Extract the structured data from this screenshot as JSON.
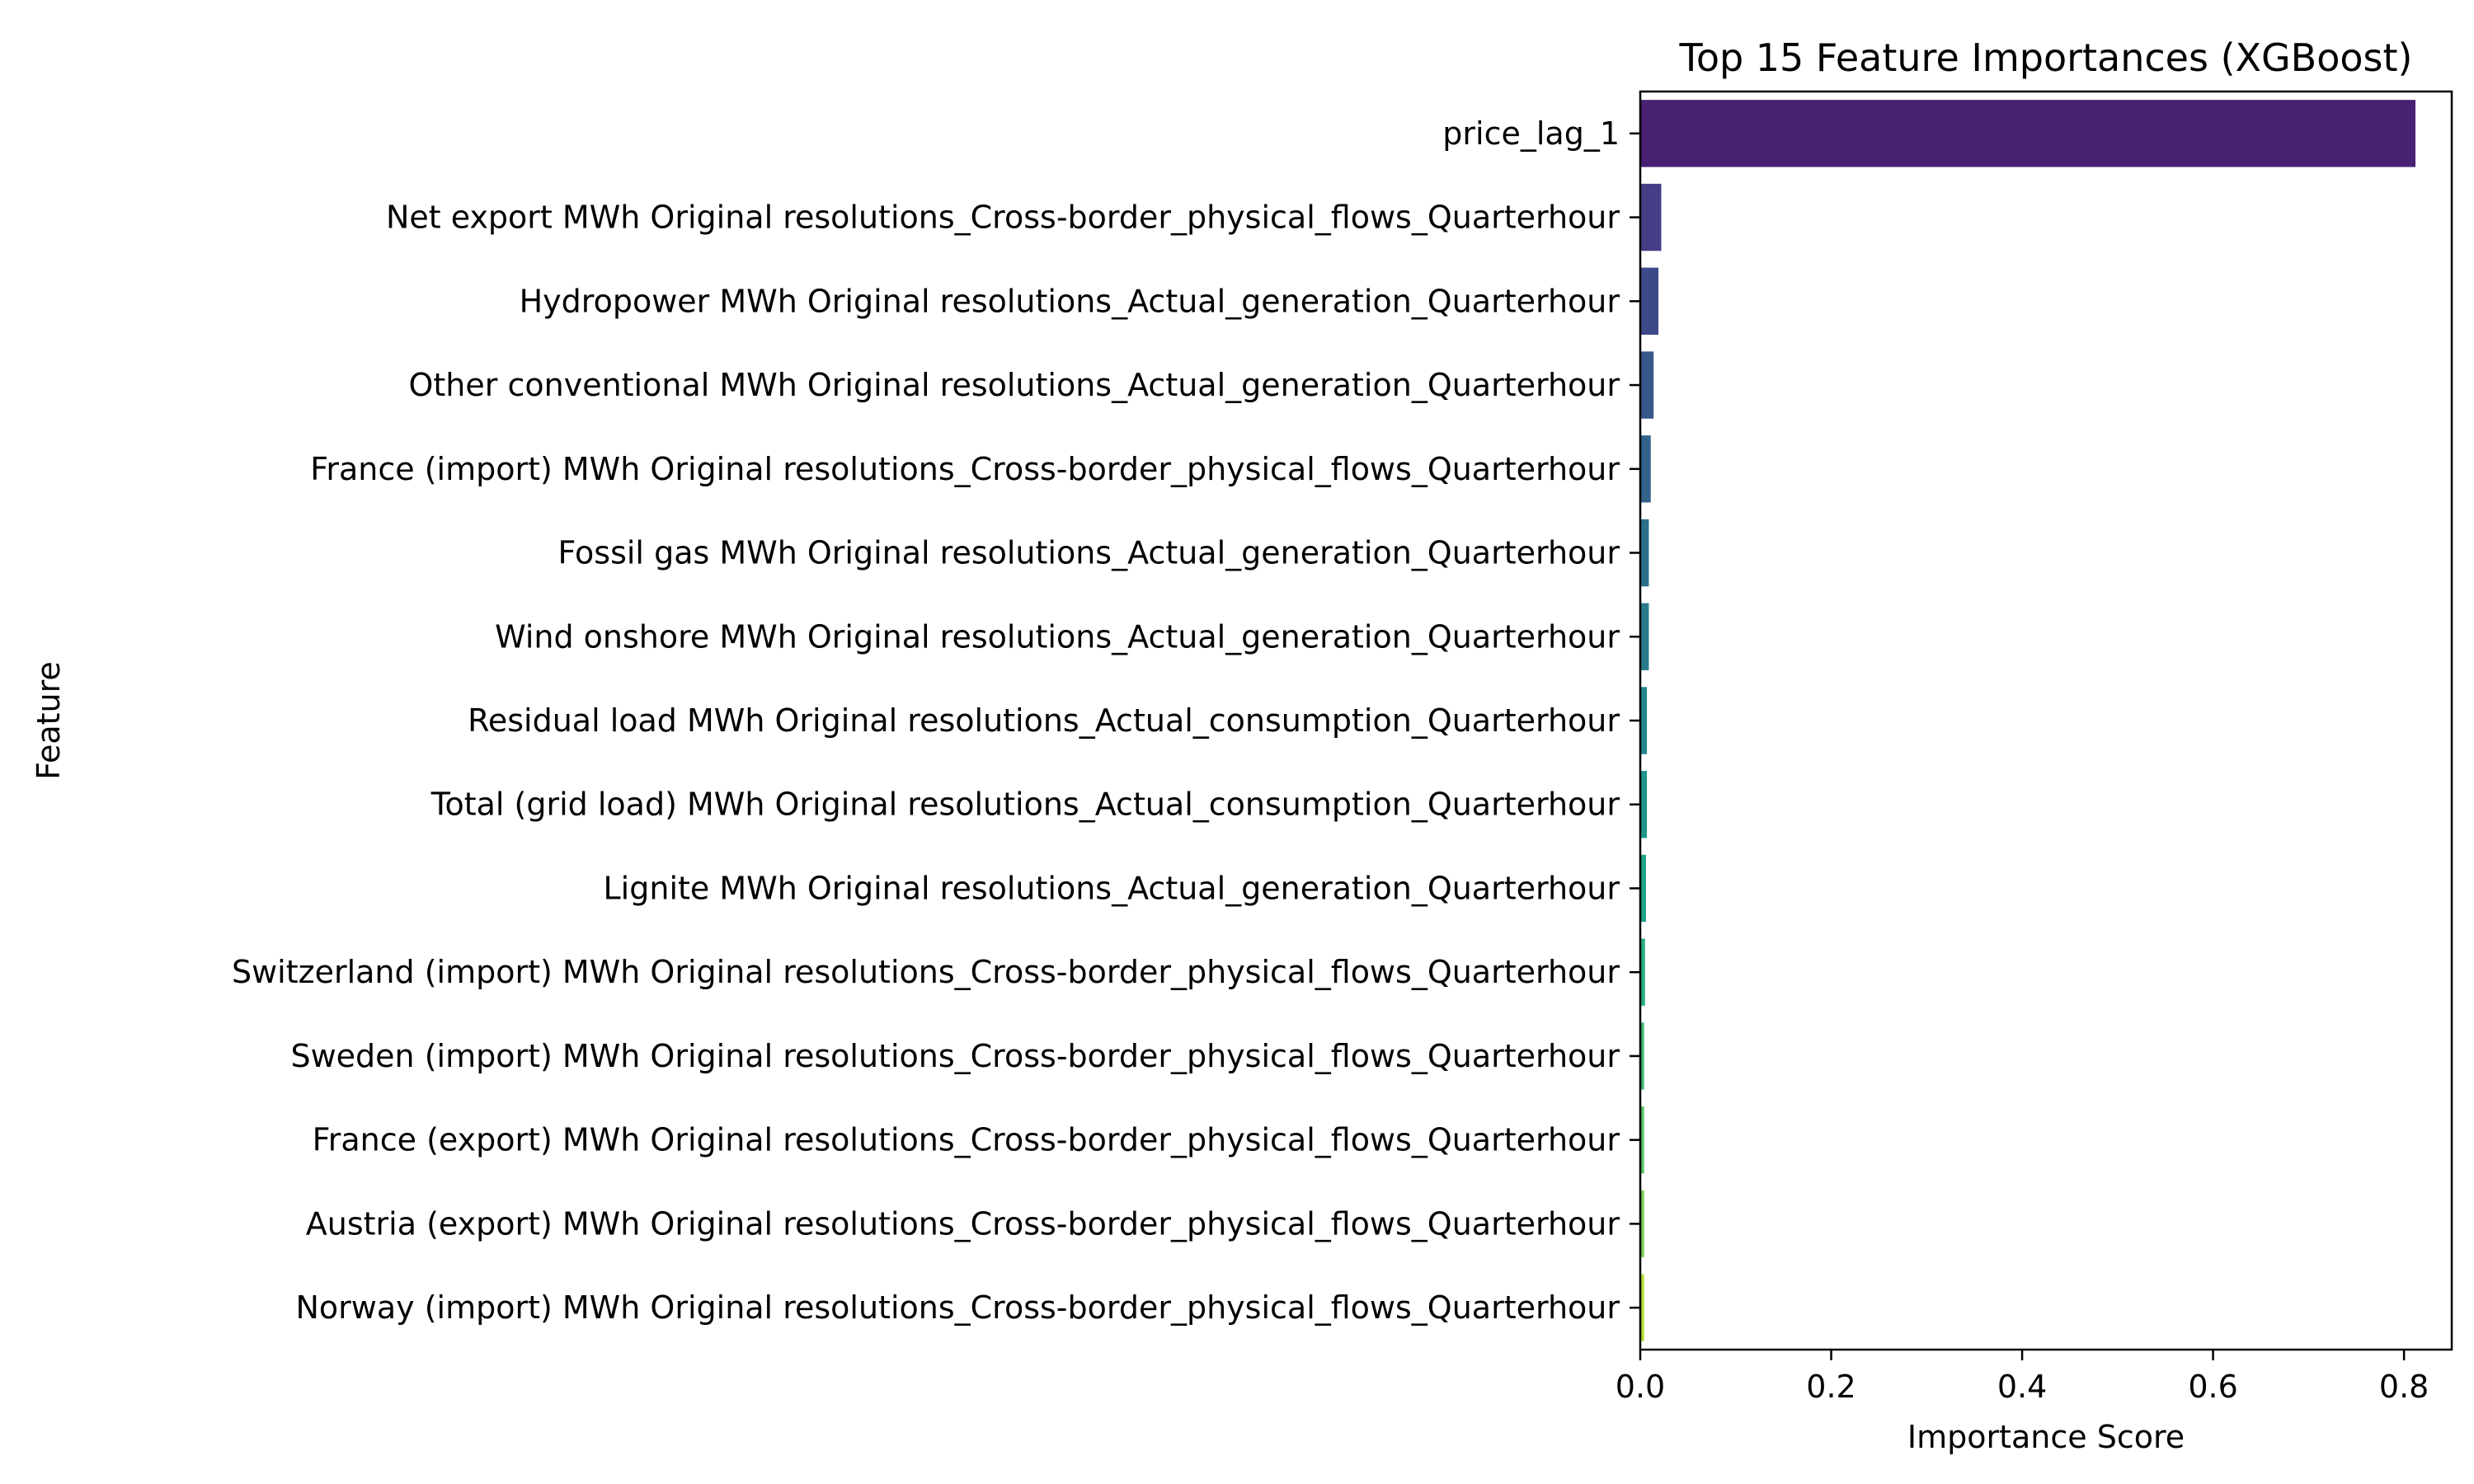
{
  "chart_data": {
    "type": "bar",
    "orientation": "horizontal",
    "title": "Top 15 Feature Importances (XGBoost)",
    "xlabel": "Importance Score",
    "ylabel": "Feature",
    "xlim": [
      0,
      0.85
    ],
    "xticks": [
      0.0,
      0.2,
      0.4,
      0.6,
      0.8
    ],
    "xtick_labels": [
      "0.0",
      "0.2",
      "0.4",
      "0.6",
      "0.8"
    ],
    "grid": false,
    "palette": "viridis",
    "categories": [
      "price_lag_1",
      "Net export MWh Original resolutions_Cross-border_physical_flows_Quarterhour",
      "Hydropower MWh Original resolutions_Actual_generation_Quarterhour",
      "Other conventional MWh Original resolutions_Actual_generation_Quarterhour",
      "France (import) MWh Original resolutions_Cross-border_physical_flows_Quarterhour",
      "Fossil gas MWh Original resolutions_Actual_generation_Quarterhour",
      "Wind onshore MWh Original resolutions_Actual_generation_Quarterhour",
      "Residual load MWh Original resolutions_Actual_consumption_Quarterhour",
      "Total (grid load) MWh Original resolutions_Actual_consumption_Quarterhour",
      "Lignite MWh Original resolutions_Actual_generation_Quarterhour",
      "Switzerland (import) MWh Original resolutions_Cross-border_physical_flows_Quarterhour",
      "Sweden (import) MWh Original resolutions_Cross-border_physical_flows_Quarterhour",
      "France (export) MWh Original resolutions_Cross-border_physical_flows_Quarterhour",
      "Austria (export) MWh Original resolutions_Cross-border_physical_flows_Quarterhour",
      "Norway (import) MWh Original resolutions_Cross-border_physical_flows_Quarterhour"
    ],
    "values": [
      0.812,
      0.022,
      0.019,
      0.014,
      0.011,
      0.009,
      0.009,
      0.007,
      0.007,
      0.006,
      0.005,
      0.004,
      0.004,
      0.004,
      0.004
    ],
    "colors": [
      "#482173",
      "#433e85",
      "#3e4989",
      "#38588c",
      "#33638d",
      "#2d708e",
      "#287c8e",
      "#25858e",
      "#1f958b",
      "#1fa088",
      "#29af7f",
      "#3bbb75",
      "#56c667",
      "#75d054",
      "#b0dd2f"
    ]
  }
}
